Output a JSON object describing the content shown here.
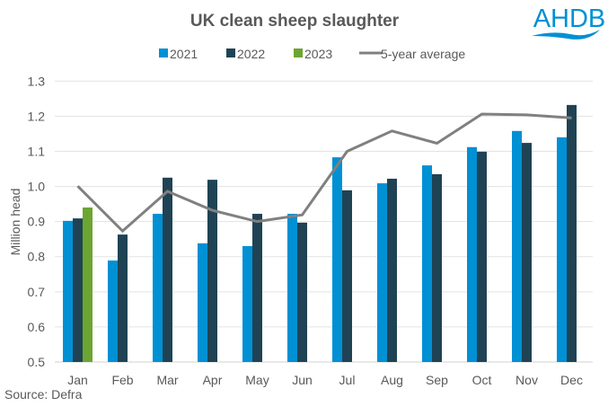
{
  "logo": {
    "text": "AHDB",
    "color": "#0090d4"
  },
  "source": "Source: Defra",
  "chart_data": {
    "type": "bar",
    "title": "UK clean sheep slaughter",
    "ylabel": "Million head",
    "xlabel": "",
    "ylim": [
      0.5,
      1.3
    ],
    "yticks": [
      "0.5",
      "0.6",
      "0.7",
      "0.8",
      "0.9",
      "1.0",
      "1.1",
      "1.2",
      "1.3"
    ],
    "grid": true,
    "legend_position": "top",
    "categories": [
      "Jan",
      "Feb",
      "Mar",
      "Apr",
      "May",
      "Jun",
      "Jul",
      "Aug",
      "Sep",
      "Oct",
      "Nov",
      "Dec"
    ],
    "series": [
      {
        "name": "2021",
        "type": "bar",
        "color": "#0090d4",
        "values": [
          0.902,
          0.789,
          0.922,
          0.838,
          0.83,
          0.922,
          1.083,
          1.009,
          1.06,
          1.112,
          1.158,
          1.14
        ]
      },
      {
        "name": "2022",
        "type": "bar",
        "color": "#1f4354",
        "values": [
          0.909,
          0.863,
          1.025,
          1.019,
          0.922,
          0.897,
          0.989,
          1.022,
          1.035,
          1.099,
          1.124,
          1.232
        ]
      },
      {
        "name": "2023",
        "type": "bar",
        "color": "#6da533",
        "values": [
          0.94,
          null,
          null,
          null,
          null,
          null,
          null,
          null,
          null,
          null,
          null,
          null
        ]
      },
      {
        "name": "5-year average",
        "type": "line",
        "color": "#808080",
        "values": [
          1.001,
          0.873,
          0.986,
          0.932,
          0.9,
          0.919,
          1.1,
          1.158,
          1.123,
          1.206,
          1.204,
          1.195
        ]
      }
    ]
  }
}
